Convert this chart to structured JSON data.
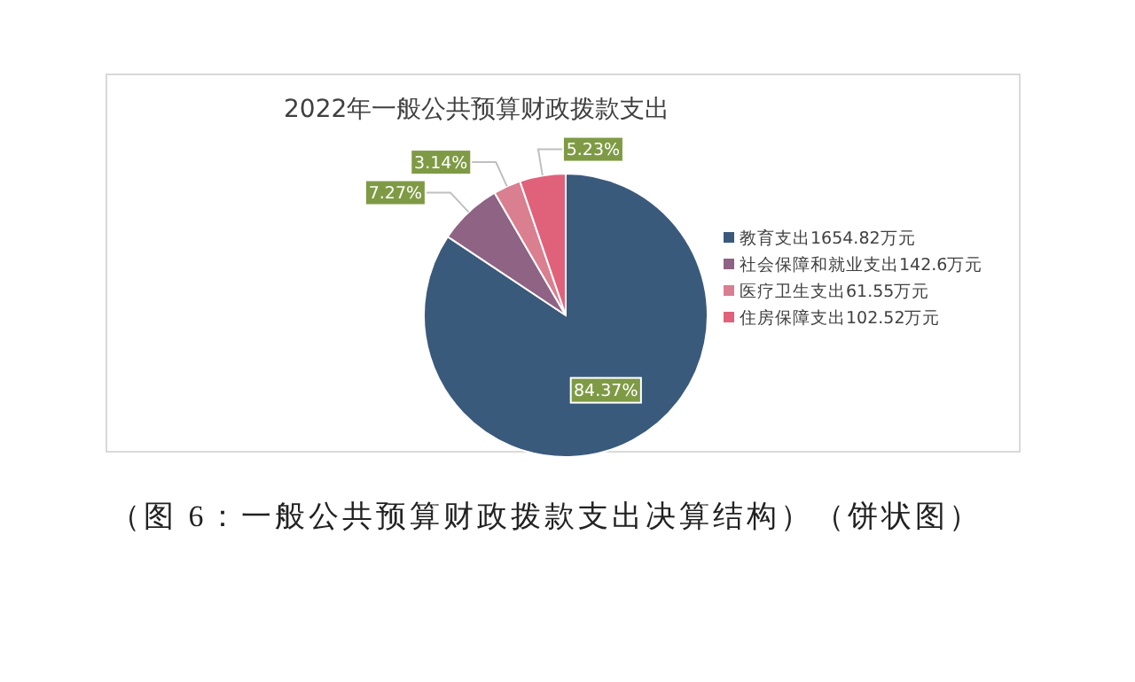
{
  "chart_data": {
    "type": "pie",
    "title": "2022年一般公共预算财政拨款支出",
    "categories": [
      "教育支出1654.82万元",
      "社会保障和就业支出142.6万元",
      "医疗卫生支出61.55万元",
      "住房保障支出102.52万元"
    ],
    "values": [
      84.37,
      7.27,
      3.14,
      5.23
    ],
    "colors": [
      "#3a5a7c",
      "#8e6384",
      "#d97f90",
      "#e0627a"
    ],
    "value_labels": [
      "84.37%",
      "7.27%",
      "3.14%",
      "5.23%"
    ],
    "legend": "right",
    "annotations": [
      "（图 6：一般公共预算财政拨款支出决算结构）（饼状图）"
    ]
  }
}
